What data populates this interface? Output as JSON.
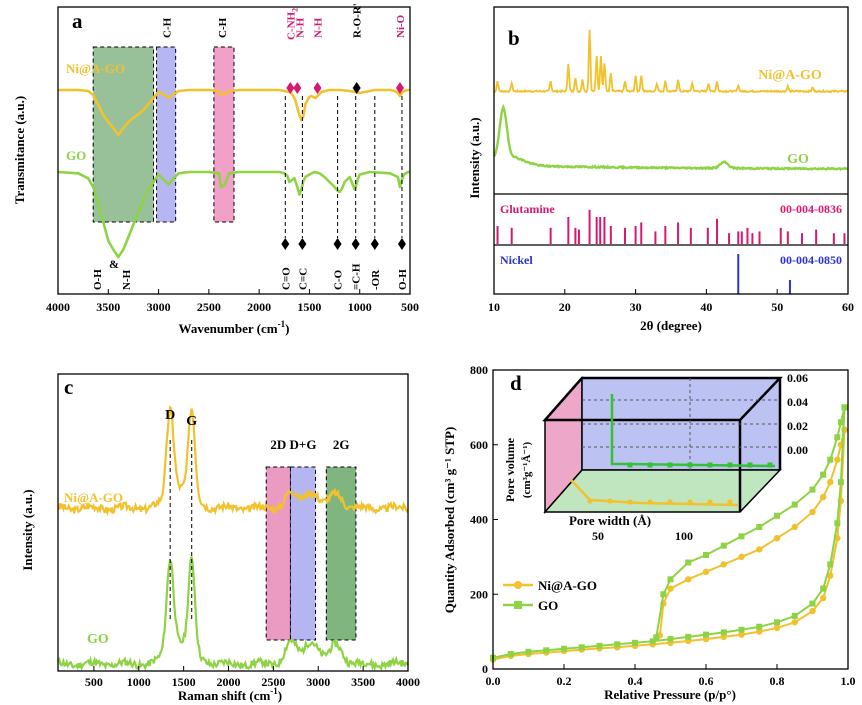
{
  "chart_data": [
    {
      "panel": "a",
      "type": "line",
      "xlabel": "Wavenumber (cm",
      "xlabel_sup": "-1",
      "xlabel_end": ")",
      "ylabel": "Transmitance (a.u.)",
      "xlim": [
        4000,
        500
      ],
      "xticks": [
        4000,
        3500,
        3000,
        2500,
        2000,
        1500,
        1000,
        500
      ],
      "series": [
        {
          "name": "Ni@A-GO",
          "color": "#f2c12e",
          "x": [
            4000,
            3800,
            3700,
            3650,
            3600,
            3550,
            3500,
            3450,
            3400,
            3350,
            3300,
            3250,
            3200,
            3150,
            3100,
            3050,
            3000,
            2950,
            2900,
            2850,
            2800,
            2700,
            2500,
            2400,
            2380,
            2340,
            2300,
            2200,
            2000,
            1800,
            1750,
            1700,
            1680,
            1660,
            1640,
            1620,
            1600,
            1580,
            1560,
            1540,
            1500,
            1480,
            1460,
            1440,
            1420,
            1400,
            1380,
            1300,
            1200,
            1100,
            1050,
            1000,
            950,
            900,
            850,
            800,
            700,
            650,
            620,
            600,
            580,
            560,
            520,
            500
          ],
          "y": [
            100,
            100,
            99,
            95,
            85,
            75,
            68,
            62,
            55,
            62,
            68,
            72,
            76,
            80,
            86,
            92,
            98,
            96,
            92,
            96,
            99,
            100,
            100,
            99,
            95,
            96,
            99,
            100,
            100,
            100,
            99,
            98,
            97,
            94,
            90,
            82,
            75,
            70,
            74,
            86,
            93,
            94,
            93,
            92,
            94,
            96,
            98,
            100,
            100,
            99,
            98,
            97,
            98,
            99,
            100,
            100,
            100,
            99,
            97,
            94,
            97,
            99,
            100,
            100
          ]
        },
        {
          "name": "GO",
          "color": "#8ed345",
          "x": [
            4000,
            3800,
            3700,
            3650,
            3600,
            3550,
            3500,
            3450,
            3400,
            3350,
            3300,
            3250,
            3200,
            3150,
            3100,
            3050,
            3000,
            2950,
            2900,
            2850,
            2800,
            2700,
            2500,
            2400,
            2380,
            2340,
            2300,
            2200,
            2000,
            1800,
            1750,
            1720,
            1700,
            1650,
            1620,
            1600,
            1580,
            1560,
            1540,
            1500,
            1450,
            1400,
            1350,
            1300,
            1250,
            1220,
            1200,
            1180,
            1150,
            1100,
            1080,
            1060,
            1050,
            1040,
            1020,
            1000,
            900,
            700,
            620,
            600,
            580,
            560,
            520,
            500
          ],
          "y": [
            100,
            99,
            95,
            88,
            75,
            60,
            45,
            38,
            32,
            38,
            48,
            58,
            68,
            78,
            86,
            92,
            98,
            94,
            90,
            95,
            99,
            100,
            100,
            99,
            88,
            90,
            99,
            100,
            100,
            100,
            99,
            97,
            92,
            95,
            88,
            82,
            86,
            93,
            96,
            98,
            100,
            99,
            96,
            92,
            88,
            85,
            84,
            86,
            92,
            96,
            92,
            88,
            86,
            88,
            94,
            98,
            100,
            99,
            96,
            88,
            94,
            98,
            100,
            100
          ]
        }
      ],
      "curve_labels": [
        "Ni@A-GO",
        "GO"
      ],
      "annotations_top": [
        {
          "text": "C-H",
          "color": "#000000"
        },
        {
          "text": "C-H",
          "color": "#000000"
        },
        {
          "text": "C-NH",
          "sub": "2",
          "color": "#d6196e"
        },
        {
          "text": "N-H",
          "color": "#d6196e"
        },
        {
          "text": "N-H",
          "color": "#d6196e"
        },
        {
          "text": "R-O-R'",
          "color": "#000000"
        },
        {
          "text": "Ni-O",
          "color": "#d6196e"
        }
      ],
      "annotations_bottom": [
        "O-H",
        "&",
        "N-H",
        "C=O",
        "C=C",
        "C-O",
        "=C-H",
        "-OR",
        "O-H"
      ]
    },
    {
      "panel": "b",
      "type": "line",
      "xlabel": "2θ (degree)",
      "ylabel": "Intensity (a.u.)",
      "xlim": [
        10,
        60
      ],
      "xticks": [
        10,
        20,
        30,
        40,
        50,
        60
      ],
      "series": [
        {
          "name": "Ni@A-GO",
          "color": "#f2c12e"
        },
        {
          "name": "GO",
          "color": "#8ed345"
        }
      ],
      "reference_patterns": [
        {
          "name": "Glutamine",
          "card": "00-004-0836",
          "color": "#d6196e",
          "x": [
            10.5,
            12.5,
            18,
            20.5,
            21.5,
            22,
            23.5,
            24.5,
            25,
            25.6,
            26.5,
            28.5,
            30,
            30.8,
            32.8,
            34.2,
            36,
            37.8,
            40.2,
            41.5,
            43.2,
            44.5,
            45,
            45.8,
            46.5,
            47.5,
            50.5,
            51.5,
            53.5,
            55.5,
            58,
            59.5
          ],
          "h": [
            0.5,
            0.45,
            0.45,
            0.75,
            0.45,
            0.4,
            0.95,
            0.75,
            0.75,
            0.75,
            0.5,
            0.45,
            0.5,
            0.6,
            0.35,
            0.5,
            0.6,
            0.45,
            0.45,
            0.7,
            0.3,
            0.35,
            0.35,
            0.45,
            0.3,
            0.35,
            0.45,
            0.35,
            0.3,
            0.4,
            0.3,
            0.3
          ]
        },
        {
          "name": "Nickel",
          "card": "00-004-0850",
          "color": "#2b33c9",
          "x": [
            44.5,
            51.8
          ],
          "h": [
            1.0,
            0.35
          ]
        }
      ]
    },
    {
      "panel": "c",
      "type": "line",
      "xlabel": "Raman shift (cm",
      "xlabel_sup": "-1",
      "xlabel_end": ")",
      "ylabel": "Intensity (a.u.)",
      "xlim": [
        100,
        4000
      ],
      "xticks": [
        500,
        1000,
        1500,
        2000,
        2500,
        3000,
        3500,
        4000
      ],
      "series": [
        {
          "name": "Ni@A-GO",
          "color": "#f2c12e"
        },
        {
          "name": "GO",
          "color": "#8ed345"
        }
      ],
      "peaks": [
        {
          "label": "D",
          "x": 1350
        },
        {
          "label": "G",
          "x": 1590
        }
      ],
      "bands": [
        {
          "label": "2D",
          "x0": 2420,
          "x1": 2690,
          "color": "#e88ab7"
        },
        {
          "label": "D+G",
          "x0": 2690,
          "x1": 2970,
          "color": "#a7a8ee"
        },
        {
          "label": "2G",
          "x0": 3090,
          "x1": 3420,
          "color": "#6aa86a"
        }
      ]
    },
    {
      "panel": "d",
      "type": "line",
      "xlabel": "Relative Pressure (p/p°)",
      "ylabel": "Quantity Adsorbed (cm³ g⁻¹ STP)",
      "xlim": [
        0.0,
        1.0
      ],
      "ylim": [
        0,
        800
      ],
      "xticks": [
        0.0,
        0.2,
        0.4,
        0.6,
        0.8,
        1.0
      ],
      "yticks": [
        0,
        200,
        400,
        600,
        800
      ],
      "series": [
        {
          "name": "Ni@A-GO",
          "color": "#f2c12e",
          "marker": "circle",
          "ads_x": [
            0.0,
            0.05,
            0.1,
            0.15,
            0.2,
            0.25,
            0.3,
            0.35,
            0.4,
            0.45,
            0.5,
            0.55,
            0.6,
            0.65,
            0.7,
            0.75,
            0.8,
            0.85,
            0.9,
            0.93,
            0.95,
            0.97,
            0.98,
            0.99
          ],
          "ads_y": [
            25,
            35,
            40,
            44,
            48,
            52,
            55,
            58,
            62,
            66,
            70,
            75,
            80,
            86,
            92,
            100,
            110,
            125,
            155,
            190,
            250,
            350,
            450,
            640
          ],
          "des_x": [
            0.99,
            0.98,
            0.97,
            0.95,
            0.93,
            0.9,
            0.85,
            0.8,
            0.75,
            0.7,
            0.65,
            0.6,
            0.55,
            0.5,
            0.48,
            0.47
          ],
          "des_y": [
            640,
            600,
            560,
            500,
            460,
            420,
            380,
            350,
            320,
            300,
            280,
            260,
            240,
            215,
            175,
            90
          ]
        },
        {
          "name": "GO",
          "color": "#8ed345",
          "marker": "square",
          "ads_x": [
            0.0,
            0.05,
            0.1,
            0.15,
            0.2,
            0.25,
            0.3,
            0.35,
            0.4,
            0.45,
            0.5,
            0.55,
            0.6,
            0.65,
            0.7,
            0.75,
            0.8,
            0.85,
            0.9,
            0.93,
            0.95,
            0.97,
            0.98,
            0.99
          ],
          "ads_y": [
            30,
            40,
            46,
            50,
            54,
            58,
            62,
            66,
            70,
            74,
            80,
            86,
            92,
            98,
            105,
            113,
            125,
            142,
            175,
            215,
            280,
            390,
            500,
            700
          ],
          "des_x": [
            0.99,
            0.98,
            0.97,
            0.95,
            0.93,
            0.9,
            0.85,
            0.8,
            0.75,
            0.7,
            0.65,
            0.6,
            0.55,
            0.5,
            0.48,
            0.46
          ],
          "des_y": [
            700,
            660,
            620,
            560,
            520,
            480,
            440,
            410,
            380,
            355,
            330,
            305,
            285,
            240,
            200,
            85
          ]
        }
      ],
      "legend": [
        "Ni@A-GO",
        "GO"
      ],
      "inset": {
        "xlabel": "Pore width (Å)",
        "ylabel": "Pore volume",
        "ylabel2": "(cm³g⁻¹Å⁻¹)",
        "xticks": [
          50,
          100
        ],
        "yticks": [
          0.06,
          0.04,
          0.02,
          0.0
        ]
      }
    }
  ],
  "panel_letters": [
    "a",
    "b",
    "c",
    "d"
  ]
}
